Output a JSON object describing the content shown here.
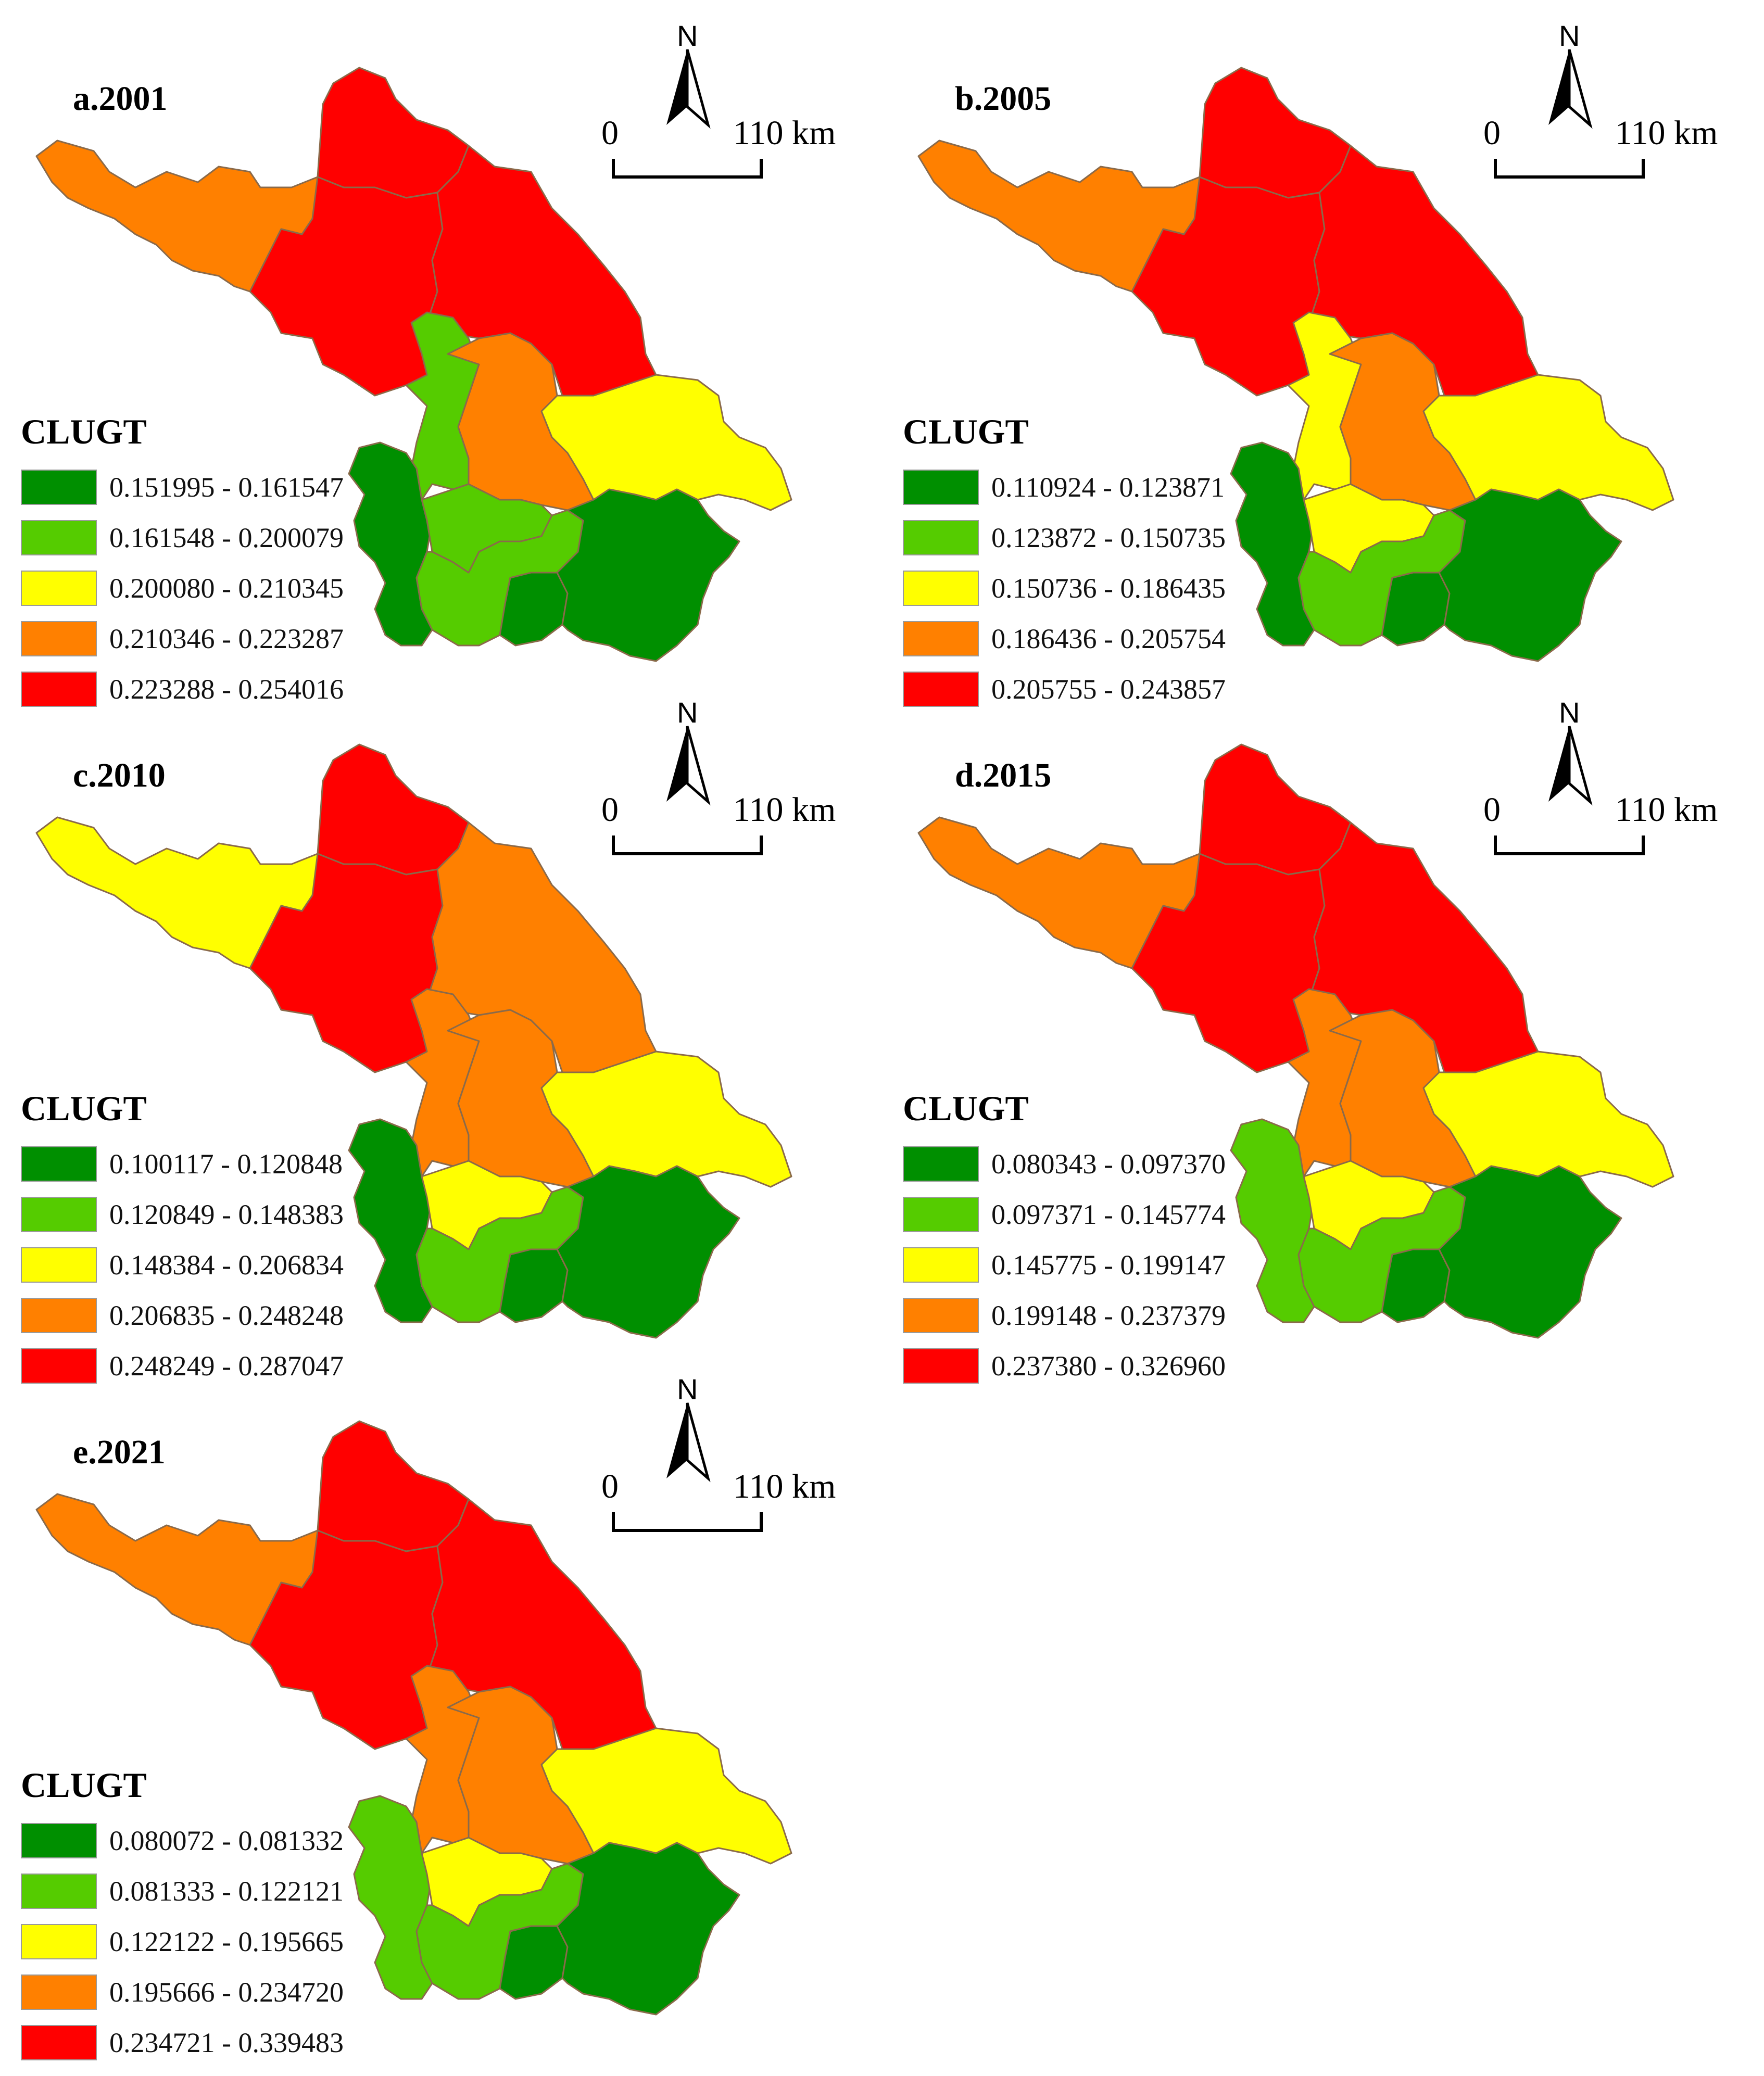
{
  "legend_title": "CLUGT",
  "scale": {
    "zero": "0",
    "distance": "110 km"
  },
  "north": "N",
  "colors": {
    "c1": "#008f00",
    "c2": "#55cc00",
    "c3": "#ffff00",
    "c4": "#ff8000",
    "c5": "#ff0000"
  },
  "panels": [
    {
      "title": "a.2001",
      "classes": [
        "0.151995 - 0.161547",
        "0.161548 - 0.200079",
        "0.200080 - 0.210345",
        "0.210346 - 0.223287",
        "0.223288 - 0.254016"
      ],
      "regions": {
        "west": "c4",
        "north": "c5",
        "center": "c5",
        "northeast": "c5",
        "midwest": "c2",
        "midcenter": "c4",
        "east": "c3",
        "sw1": "c1",
        "sw2": "c2",
        "sw3": "c2",
        "sw4": "c1",
        "southeast": "c1"
      }
    },
    {
      "title": "b.2005",
      "classes": [
        "0.110924 - 0.123871",
        "0.123872 - 0.150735",
        "0.150736 - 0.186435",
        "0.186436 - 0.205754",
        "0.205755 - 0.243857"
      ],
      "regions": {
        "west": "c4",
        "north": "c5",
        "center": "c5",
        "northeast": "c5",
        "midwest": "c3",
        "midcenter": "c4",
        "east": "c3",
        "sw1": "c1",
        "sw2": "c3",
        "sw3": "c2",
        "sw4": "c1",
        "southeast": "c1"
      }
    },
    {
      "title": "c.2010",
      "classes": [
        "0.100117 - 0.120848",
        "0.120849 - 0.148383",
        "0.148384 - 0.206834",
        "0.206835 - 0.248248",
        "0.248249 - 0.287047"
      ],
      "regions": {
        "west": "c3",
        "north": "c5",
        "center": "c5",
        "northeast": "c4",
        "midwest": "c4",
        "midcenter": "c4",
        "east": "c3",
        "sw1": "c1",
        "sw2": "c3",
        "sw3": "c2",
        "sw4": "c1",
        "southeast": "c1"
      }
    },
    {
      "title": "d.2015",
      "classes": [
        "0.080343 - 0.097370",
        "0.097371 - 0.145774",
        "0.145775 - 0.199147",
        "0.199148 - 0.237379",
        "0.237380 - 0.326960"
      ],
      "regions": {
        "west": "c4",
        "north": "c5",
        "center": "c5",
        "northeast": "c5",
        "midwest": "c4",
        "midcenter": "c4",
        "east": "c3",
        "sw1": "c2",
        "sw2": "c3",
        "sw3": "c2",
        "sw4": "c1",
        "southeast": "c1"
      }
    },
    {
      "title": "e.2021",
      "classes": [
        "0.080072 - 0.081332",
        "0.081333 - 0.122121",
        "0.122122 - 0.195665",
        "0.195666 - 0.234720",
        "0.234721 - 0.339483"
      ],
      "regions": {
        "west": "c4",
        "north": "c5",
        "center": "c5",
        "northeast": "c5",
        "midwest": "c4",
        "midcenter": "c4",
        "east": "c3",
        "sw1": "c2",
        "sw2": "c3",
        "sw3": "c2",
        "sw4": "c1",
        "southeast": "c1"
      }
    }
  ]
}
